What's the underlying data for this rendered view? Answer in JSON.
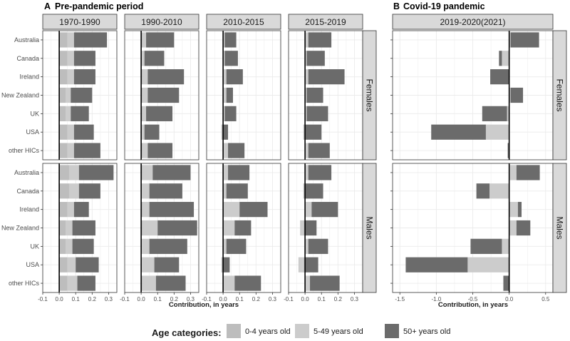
{
  "chart_data": {
    "type": "bar",
    "orientation": "horizontal",
    "stacked": true,
    "panels": [
      {
        "key": "A",
        "title": "Pre-pandemic period",
        "xlabel": "Contribution, in years",
        "xlim": [
          -0.1,
          0.35
        ],
        "ticks": [
          -0.1,
          0.0,
          0.1,
          0.2,
          0.3
        ],
        "tick_labels": [
          "-0.1",
          "0.0",
          "0.1",
          "0.2",
          "0.3"
        ],
        "periods": [
          "1970-1990",
          "1990-2010",
          "2010-2015",
          "2015-2019"
        ]
      },
      {
        "key": "B",
        "title": "Covid-19 pandemic",
        "xlabel": "Contribution, in years",
        "xlim": [
          -1.6,
          0.6
        ],
        "ticks": [
          -1.5,
          -1.0,
          -0.5,
          0.0,
          0.5
        ],
        "tick_labels": [
          "-1.5",
          "-1.0",
          "-0.5",
          "0.0",
          "0.5"
        ],
        "periods": [
          "2019-2020(2021)"
        ]
      }
    ],
    "sexes": [
      "Females",
      "Males"
    ],
    "categories": [
      "Australia",
      "Canada",
      "Ireland",
      "New Zealand",
      "UK",
      "USA",
      "other HICs"
    ],
    "legend": {
      "title": "Age categories:",
      "placement": "bottom",
      "items": [
        {
          "label": "0-4 years old",
          "color": "#bdbdbd"
        },
        {
          "label": "5-49 years old",
          "color": "#cccccc"
        },
        {
          "label": "50+ years old",
          "color": "#6b6b6b"
        }
      ]
    },
    "series_order": [
      "0-4",
      "5-49",
      "50+"
    ],
    "data": {
      "Females": {
        "1970-1990": {
          "Australia": [
            0.05,
            0.04,
            0.2
          ],
          "Canada": [
            0.05,
            0.04,
            0.13
          ],
          "Ireland": [
            0.05,
            0.04,
            0.13
          ],
          "New Zealand": [
            0.04,
            0.03,
            0.13
          ],
          "UK": [
            0.04,
            0.03,
            0.11
          ],
          "USA": [
            0.05,
            0.04,
            0.12
          ],
          "other HICs": [
            0.05,
            0.04,
            0.16
          ]
        },
        "1990-2010": {
          "Australia": [
            0.01,
            0.02,
            0.17
          ],
          "Canada": [
            0.0,
            0.02,
            0.12
          ],
          "Ireland": [
            0.01,
            0.03,
            0.22
          ],
          "New Zealand": [
            0.01,
            0.03,
            0.19
          ],
          "UK": [
            0.01,
            0.02,
            0.16
          ],
          "USA": [
            0.0,
            0.02,
            0.09
          ],
          "other HICs": [
            0.01,
            0.03,
            0.15
          ]
        },
        "2010-2015": {
          "Australia": [
            0.0,
            0.01,
            0.07
          ],
          "Canada": [
            0.0,
            0.01,
            0.08
          ],
          "Ireland": [
            0.0,
            0.02,
            0.1
          ],
          "New Zealand": [
            0.0,
            0.02,
            0.04
          ],
          "UK": [
            0.0,
            0.01,
            0.07
          ],
          "USA": [
            -0.01,
            0.0,
            0.03
          ],
          "other HICs": [
            0.0,
            0.03,
            0.1
          ]
        },
        "2015-2019": {
          "Australia": [
            0.0,
            0.02,
            0.14
          ],
          "Canada": [
            0.0,
            0.01,
            0.11
          ],
          "Ireland": [
            0.0,
            0.02,
            0.22
          ],
          "New Zealand": [
            0.0,
            0.01,
            0.1
          ],
          "UK": [
            0.0,
            0.01,
            0.13
          ],
          "USA": [
            -0.01,
            0.0,
            0.1
          ],
          "other HICs": [
            0.0,
            0.02,
            0.13
          ]
        },
        "2019-2020(2021)": {
          "Australia": [
            0.0,
            0.02,
            0.39
          ],
          "Canada": [
            0.0,
            -0.1,
            -0.04
          ],
          "Ireland": [
            0.0,
            0.0,
            -0.26
          ],
          "New Zealand": [
            0.0,
            0.02,
            0.17
          ],
          "UK": [
            0.0,
            -0.03,
            -0.34
          ],
          "USA": [
            0.0,
            -0.32,
            -0.75
          ],
          "other HICs": [
            0.0,
            0.0,
            -0.02
          ]
        }
      },
      "Males": {
        "1970-1990": {
          "Australia": [
            0.06,
            0.06,
            0.21
          ],
          "Canada": [
            0.06,
            0.06,
            0.13
          ],
          "Ireland": [
            0.05,
            0.04,
            0.09
          ],
          "New Zealand": [
            0.04,
            0.04,
            0.14
          ],
          "UK": [
            0.04,
            0.04,
            0.13
          ],
          "USA": [
            0.05,
            0.05,
            0.14
          ],
          "other HICs": [
            0.05,
            0.06,
            0.11
          ]
        },
        "1990-2010": {
          "Australia": [
            0.01,
            0.06,
            0.23
          ],
          "Canada": [
            0.0,
            0.05,
            0.2
          ],
          "Ireland": [
            0.01,
            0.04,
            0.27
          ],
          "New Zealand": [
            0.01,
            0.09,
            0.24
          ],
          "UK": [
            0.0,
            0.05,
            0.23
          ],
          "USA": [
            0.0,
            0.08,
            0.15
          ],
          "other HICs": [
            0.01,
            0.08,
            0.18
          ]
        },
        "2010-2015": {
          "Australia": [
            0.0,
            0.03,
            0.13
          ],
          "Canada": [
            0.0,
            0.02,
            0.13
          ],
          "Ireland": [
            0.0,
            0.1,
            0.17
          ],
          "New Zealand": [
            0.0,
            0.07,
            0.1
          ],
          "UK": [
            0.0,
            0.02,
            0.12
          ],
          "USA": [
            -0.01,
            0.0,
            0.04
          ],
          "other HICs": [
            0.0,
            0.07,
            0.16
          ]
        },
        "2015-2019": {
          "Australia": [
            0.0,
            0.02,
            0.14
          ],
          "Canada": [
            -0.01,
            0.0,
            0.11
          ],
          "Ireland": [
            0.0,
            0.04,
            0.16
          ],
          "New Zealand": [
            -0.01,
            -0.02,
            0.07
          ],
          "UK": [
            0.0,
            0.02,
            0.12
          ],
          "USA": [
            -0.01,
            -0.03,
            0.08
          ],
          "other HICs": [
            0.0,
            0.03,
            0.18
          ]
        },
        "2019-2020(2021)": {
          "Australia": [
            0.0,
            0.1,
            0.32
          ],
          "Canada": [
            0.0,
            -0.27,
            -0.18
          ],
          "Ireland": [
            0.0,
            0.12,
            0.05
          ],
          "New Zealand": [
            0.0,
            0.1,
            0.19
          ],
          "UK": [
            0.0,
            -0.1,
            -0.43
          ],
          "USA": [
            0.0,
            -0.57,
            -0.85
          ],
          "other HICs": [
            0.0,
            0.0,
            -0.08
          ]
        }
      }
    }
  }
}
